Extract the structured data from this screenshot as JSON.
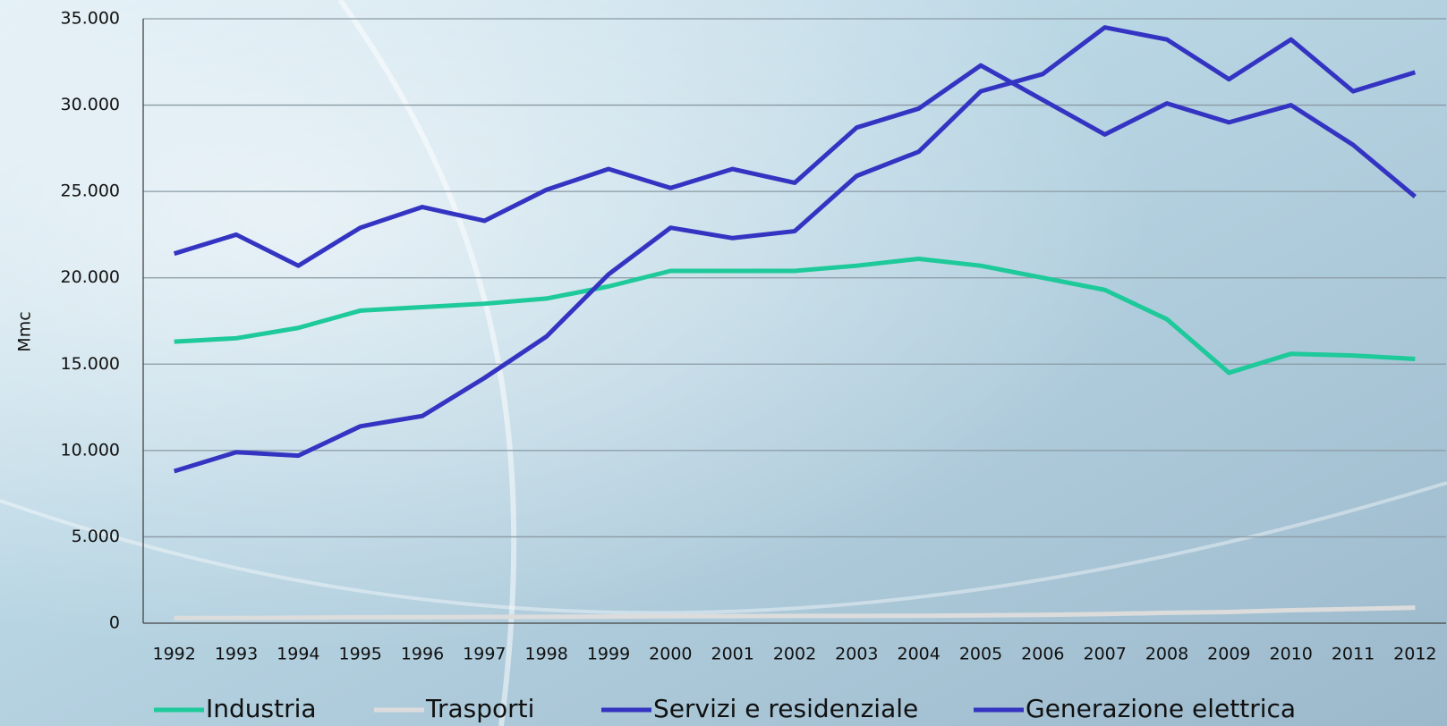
{
  "chart_data": {
    "type": "line",
    "y_label": "Mmc",
    "categories": [
      "1992",
      "1993",
      "1994",
      "1995",
      "1996",
      "1997",
      "1998",
      "1999",
      "2000",
      "2001",
      "2002",
      "2003",
      "2004",
      "2005",
      "2006",
      "2007",
      "2008",
      "2009",
      "2010",
      "2011",
      "2012"
    ],
    "series": [
      {
        "name": "Industria",
        "color": "#1ec99a",
        "values": [
          16300,
          16500,
          17100,
          18100,
          18300,
          18500,
          18800,
          19500,
          20400,
          20400,
          20400,
          20700,
          21100,
          20700,
          20000,
          19300,
          17600,
          14500,
          15600,
          15500,
          15300
        ]
      },
      {
        "name": "Trasporti",
        "color": "#dcdcdc",
        "values": [
          300,
          300,
          320,
          340,
          350,
          360,
          370,
          380,
          400,
          410,
          420,
          420,
          430,
          450,
          480,
          530,
          600,
          650,
          750,
          820,
          900
        ]
      },
      {
        "name": "Servizi e residenziale",
        "color": "#3434c2",
        "values": [
          21400,
          22500,
          20700,
          22900,
          24100,
          23300,
          25100,
          26300,
          25200,
          26300,
          25500,
          28700,
          29800,
          32300,
          30300,
          28300,
          30100,
          29000,
          30000,
          27700,
          24700
        ]
      },
      {
        "name": "Generazione elettrica",
        "color": "#3434c2",
        "values": [
          8800,
          9900,
          9700,
          11400,
          12000,
          14200,
          16600,
          20200,
          22900,
          22300,
          22700,
          25900,
          27300,
          30800,
          31800,
          34500,
          33800,
          31500,
          33800,
          30800,
          31900
        ]
      }
    ],
    "ylim": [
      0,
      35000
    ],
    "yticks": [
      0,
      {
        "value": 5000,
        "label": "5.000"
      },
      {
        "value": 10000,
        "label": "10.000"
      },
      {
        "value": 15000,
        "label": "15.000"
      },
      {
        "value": 20000,
        "label": "20.000"
      },
      {
        "value": 25000,
        "label": "25.000"
      },
      {
        "value": 30000,
        "label": "30.000"
      },
      {
        "value": 35000,
        "label": "35.000"
      }
    ],
    "grid": true,
    "legend": "bottom"
  }
}
